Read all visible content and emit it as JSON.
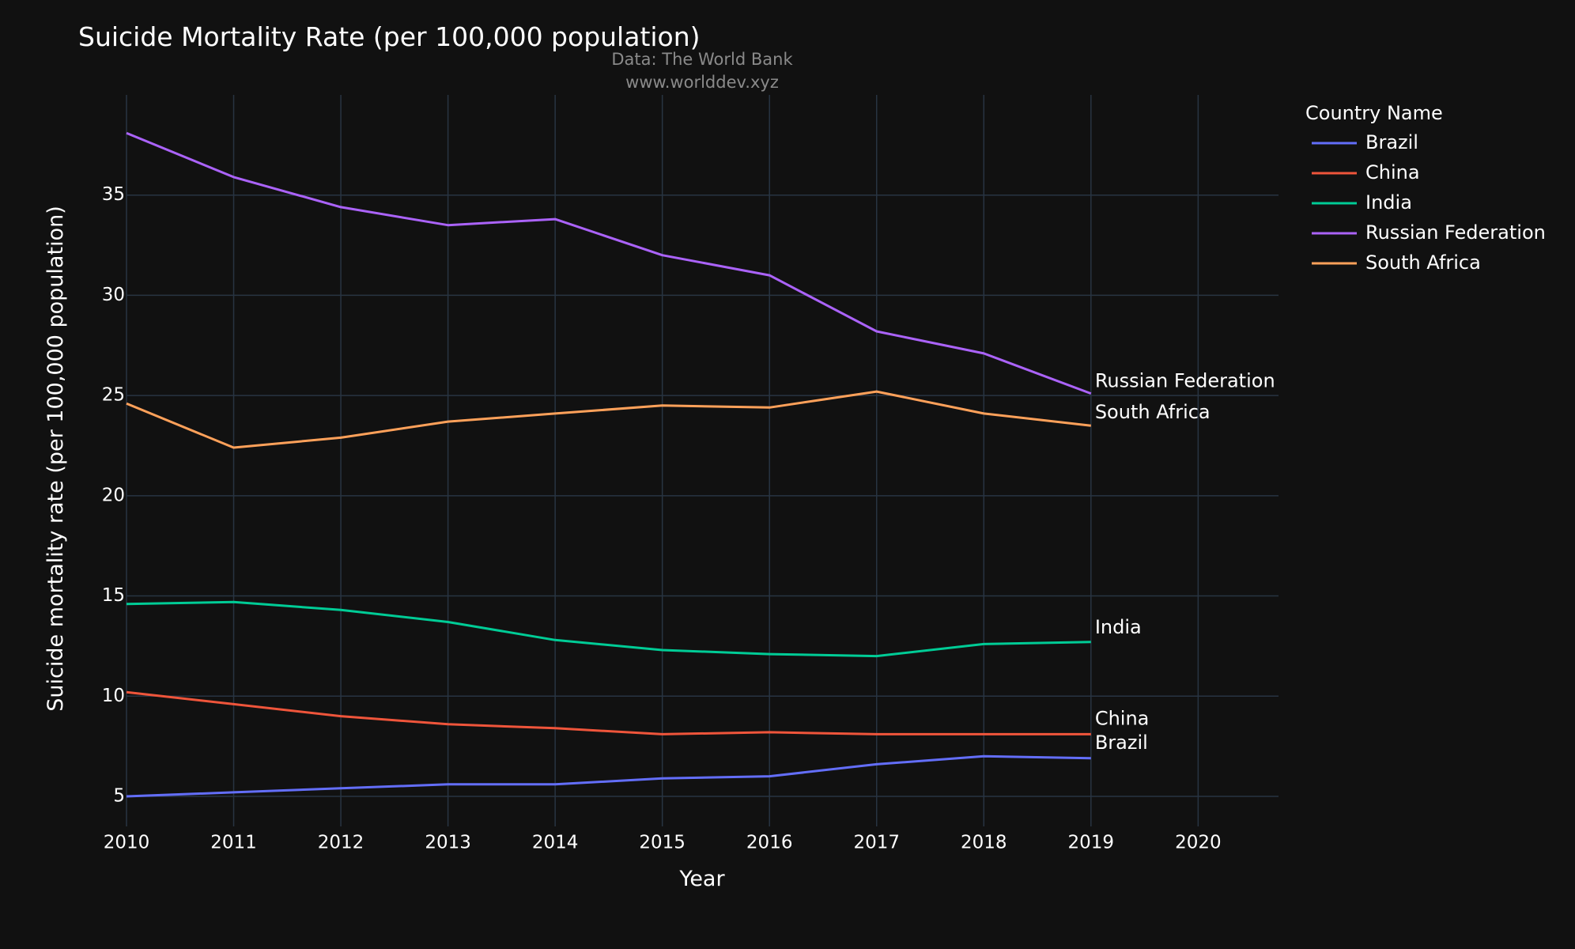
{
  "chart_data": {
    "type": "line",
    "title": "Suicide Mortality Rate (per 100,000 population)",
    "subtitle_lines": [
      "Data: The World Bank",
      "www.worlddev.xyz"
    ],
    "xlabel": "Year",
    "ylabel": "Suicide mortality rate (per 100,000 population)",
    "xlim": [
      2010,
      2020.75
    ],
    "ylim": [
      3.5,
      40
    ],
    "x_ticks": [
      2010,
      2011,
      2012,
      2013,
      2014,
      2015,
      2016,
      2017,
      2018,
      2019,
      2020
    ],
    "y_ticks": [
      5,
      10,
      15,
      20,
      25,
      30,
      35
    ],
    "grid": true,
    "legend": {
      "title": "Country Name",
      "position": "top-right outside"
    },
    "x": [
      2010,
      2011,
      2012,
      2013,
      2014,
      2015,
      2016,
      2017,
      2018,
      2019
    ],
    "series": [
      {
        "name": "Brazil",
        "color": "#636efa",
        "values": [
          5.0,
          5.2,
          5.4,
          5.6,
          5.6,
          5.9,
          6.0,
          6.6,
          7.0,
          6.9
        ]
      },
      {
        "name": "China",
        "color": "#ef553b",
        "values": [
          10.2,
          9.6,
          9.0,
          8.6,
          8.4,
          8.1,
          8.2,
          8.1,
          8.1,
          8.1
        ]
      },
      {
        "name": "India",
        "color": "#00cc96",
        "values": [
          14.6,
          14.7,
          14.3,
          13.7,
          12.8,
          12.3,
          12.1,
          12.0,
          12.6,
          12.7
        ]
      },
      {
        "name": "Russian Federation",
        "color": "#ab63fa",
        "values": [
          38.1,
          35.9,
          34.4,
          33.5,
          33.8,
          32.0,
          31.0,
          28.2,
          27.1,
          25.1
        ]
      },
      {
        "name": "South Africa",
        "color": "#ffa15a",
        "values": [
          24.6,
          22.4,
          22.9,
          23.7,
          24.1,
          24.5,
          24.4,
          25.2,
          24.1,
          23.5
        ]
      }
    ]
  }
}
